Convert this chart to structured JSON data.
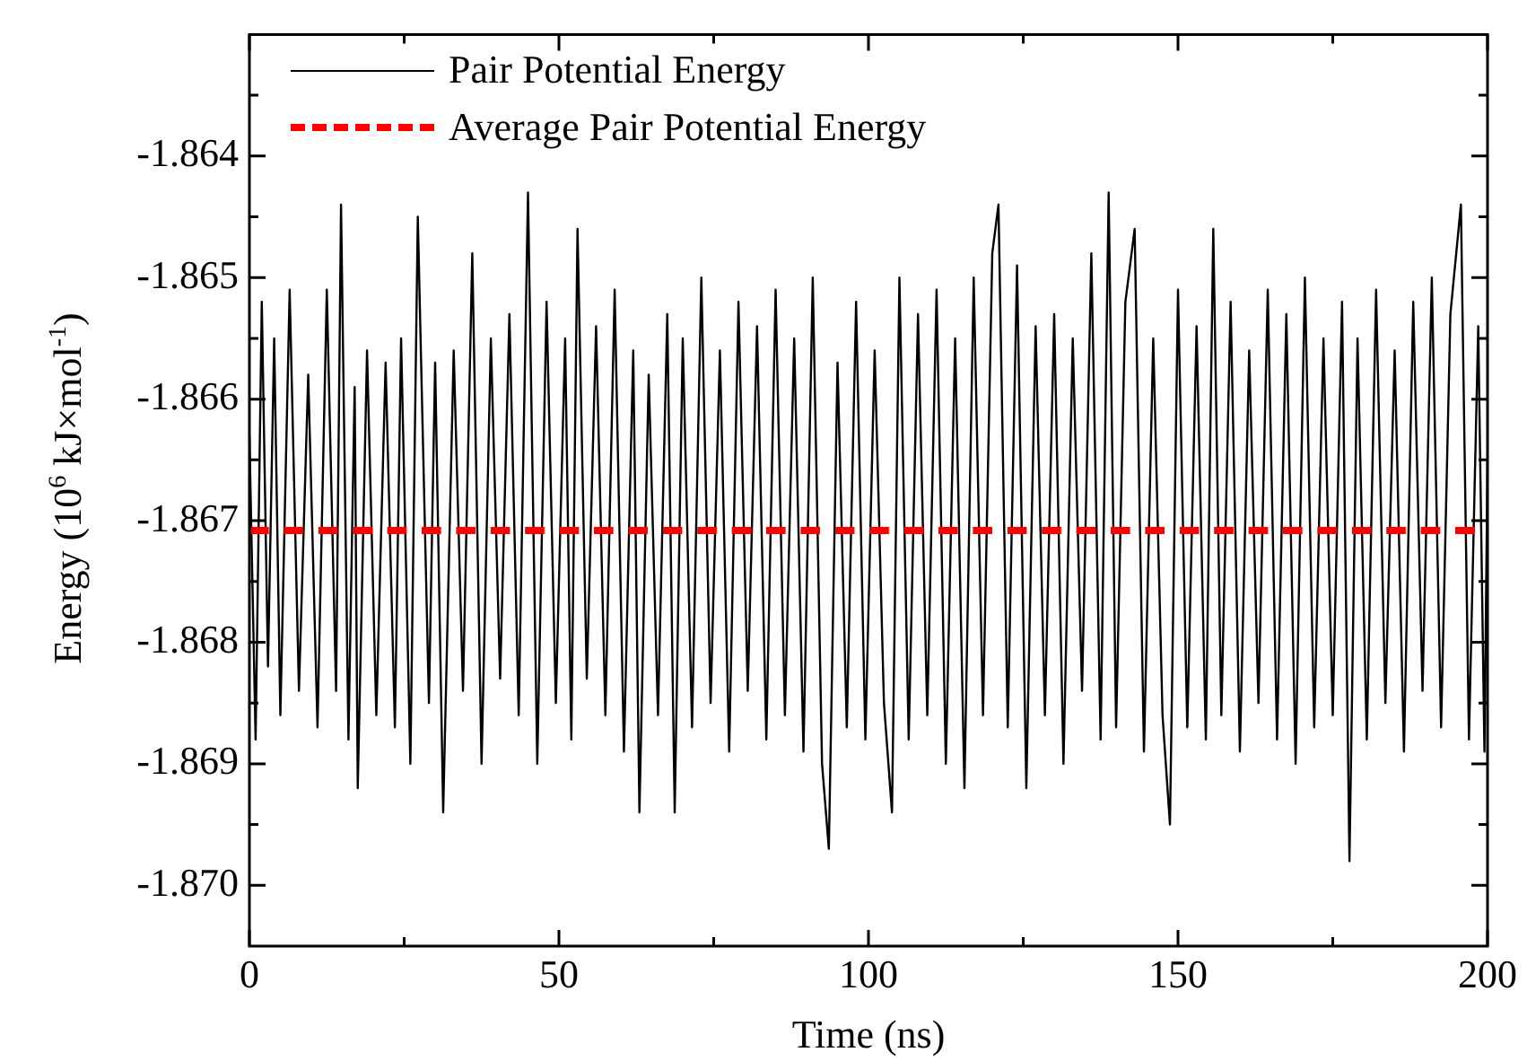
{
  "chart_data": {
    "type": "line",
    "xlabel": "Time (ns)",
    "ylabel": "Energy (10$^{6}$ kJ×mol$^{-1}$)",
    "xlim": [
      0,
      200
    ],
    "xticks": [
      0,
      {
        "value": 25,
        "label": null
      },
      50,
      {
        "value": 75,
        "label": null
      },
      100,
      {
        "value": 125,
        "label": null
      },
      150,
      {
        "value": 175,
        "label": null
      },
      200
    ],
    "ylim": [
      -1.8705,
      -1.863
    ],
    "yticks": [
      {
        "value": -1.8635,
        "label": null
      },
      -1.864,
      {
        "value": -1.8645,
        "label": null
      },
      -1.865,
      {
        "value": -1.8655,
        "label": null
      },
      -1.866,
      {
        "value": -1.8665,
        "label": null
      },
      -1.867,
      {
        "value": -1.8675,
        "label": null
      },
      -1.868,
      {
        "value": -1.8685,
        "label": null
      },
      -1.869,
      {
        "value": -1.8695,
        "label": null
      },
      {
        "value": -1.87,
        "label": "-1.870"
      }
    ],
    "grid": false,
    "legend": "top left",
    "marker": "none",
    "line_style": "solid",
    "series": [
      {
        "name": "Pair Potential Energy",
        "color": "#000000",
        "x": [
          0,
          1,
          2,
          3,
          4,
          5,
          6.5,
          8,
          9.5,
          11,
          12.5,
          14,
          14.8,
          16,
          17,
          17.5,
          19,
          20.5,
          22,
          23.5,
          24.5,
          26,
          27.2,
          29,
          30,
          31.3,
          33,
          34.5,
          36,
          37.5,
          39,
          40.5,
          42,
          43.5,
          45,
          46.5,
          48,
          49.5,
          51,
          52,
          53,
          54.5,
          56,
          57.5,
          59,
          60.5,
          62,
          63,
          64.5,
          66,
          67.5,
          68.7,
          70,
          71.5,
          73,
          74.5,
          76,
          77.5,
          79,
          80.5,
          82,
          83.5,
          85,
          86.5,
          88,
          89.5,
          91,
          92.5,
          93.6,
          95,
          96.5,
          98,
          99.5,
          101,
          102.5,
          103.8,
          105,
          106.5,
          108,
          109.5,
          111,
          112.5,
          114,
          115.5,
          117,
          118.5,
          120,
          121,
          122.5,
          124,
          125.5,
          127,
          128.5,
          130,
          131.5,
          133,
          134.5,
          136,
          137.5,
          138.8,
          140,
          141.5,
          143,
          144.5,
          146,
          147.5,
          148.7,
          150,
          151.5,
          153,
          154.5,
          155.7,
          157,
          158.5,
          160,
          161.5,
          163,
          164.5,
          166,
          167.5,
          169,
          170.5,
          172,
          173.5,
          175,
          176.5,
          177.7,
          179,
          180.5,
          182,
          183.5,
          185,
          186.5,
          188,
          189.5,
          191,
          192.5,
          194,
          195.7,
          197,
          198.5,
          199.5,
          200
        ],
        "values": [
          -1.8663,
          -1.8688,
          -1.8652,
          -1.8682,
          -1.8655,
          -1.8686,
          -1.8651,
          -1.8684,
          -1.8658,
          -1.8687,
          -1.8651,
          -1.8684,
          -1.8644,
          -1.8688,
          -1.8659,
          -1.8692,
          -1.8656,
          -1.8686,
          -1.8657,
          -1.8687,
          -1.8655,
          -1.869,
          -1.8645,
          -1.8685,
          -1.8657,
          -1.8694,
          -1.8656,
          -1.8684,
          -1.8648,
          -1.869,
          -1.8655,
          -1.8683,
          -1.8653,
          -1.8686,
          -1.8643,
          -1.869,
          -1.8652,
          -1.8685,
          -1.8655,
          -1.8688,
          -1.8646,
          -1.8683,
          -1.8654,
          -1.8686,
          -1.8651,
          -1.8689,
          -1.8656,
          -1.8694,
          -1.8658,
          -1.8686,
          -1.8653,
          -1.8694,
          -1.8655,
          -1.8687,
          -1.865,
          -1.8685,
          -1.8656,
          -1.8689,
          -1.8652,
          -1.8684,
          -1.8654,
          -1.8688,
          -1.8651,
          -1.8686,
          -1.8655,
          -1.8689,
          -1.865,
          -1.869,
          -1.8697,
          -1.8657,
          -1.8687,
          -1.8652,
          -1.8688,
          -1.8656,
          -1.8685,
          -1.8694,
          -1.865,
          -1.8688,
          -1.8653,
          -1.8686,
          -1.8651,
          -1.869,
          -1.8655,
          -1.8692,
          -1.865,
          -1.8686,
          -1.8648,
          -1.8644,
          -1.8687,
          -1.8649,
          -1.8692,
          -1.8654,
          -1.8686,
          -1.8653,
          -1.869,
          -1.8655,
          -1.8684,
          -1.8648,
          -1.8688,
          -1.8643,
          -1.8687,
          -1.8652,
          -1.8646,
          -1.8689,
          -1.8655,
          -1.8686,
          -1.8695,
          -1.8651,
          -1.8687,
          -1.8654,
          -1.8688,
          -1.8646,
          -1.8686,
          -1.8652,
          -1.8689,
          -1.8656,
          -1.8685,
          -1.8651,
          -1.8688,
          -1.8653,
          -1.869,
          -1.865,
          -1.8687,
          -1.8655,
          -1.8686,
          -1.8652,
          -1.8698,
          -1.8655,
          -1.8688,
          -1.8651,
          -1.8685,
          -1.8656,
          -1.8689,
          -1.8652,
          -1.8684,
          -1.865,
          -1.8687,
          -1.8653,
          -1.8644,
          -1.8688,
          -1.8654,
          -1.8689,
          -1.8665
        ]
      }
    ],
    "ref_lines": [
      {
        "axis": "y",
        "value": -1.86708,
        "label": "Average Pair Potential Energy",
        "color": "#ff0000",
        "line_style": "dashed"
      }
    ]
  }
}
